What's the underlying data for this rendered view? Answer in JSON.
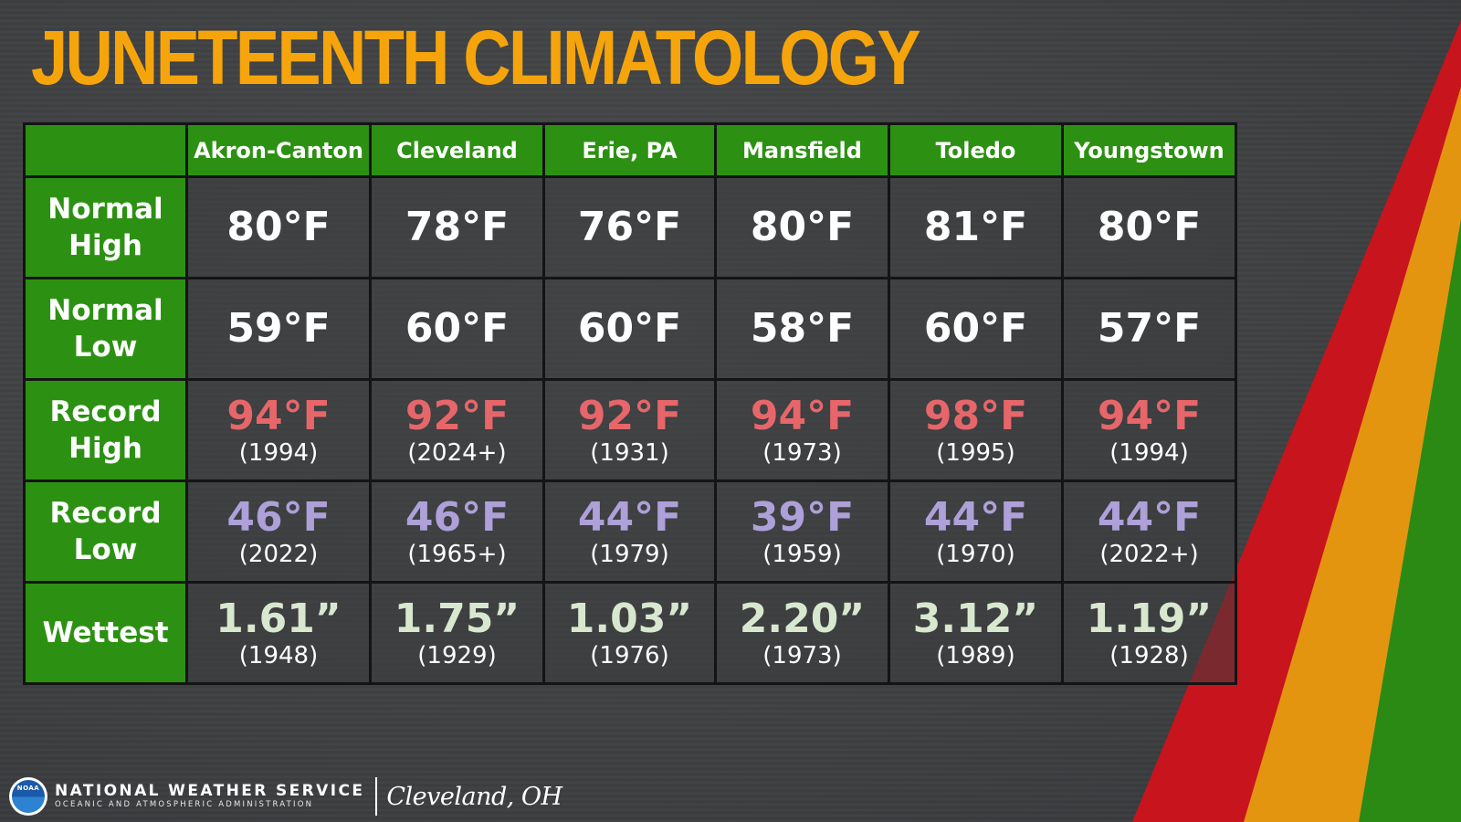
{
  "title": "JUNETEENTH CLIMATOLOGY",
  "columns": [
    "Akron-Canton",
    "Cleveland",
    "Erie, PA",
    "Mansfield",
    "Toledo",
    "Youngstown"
  ],
  "rows": [
    {
      "label": "Normal High",
      "cells": [
        {
          "value": "80°F"
        },
        {
          "value": "78°F"
        },
        {
          "value": "76°F"
        },
        {
          "value": "80°F"
        },
        {
          "value": "81°F"
        },
        {
          "value": "80°F"
        }
      ]
    },
    {
      "label": "Normal Low",
      "cells": [
        {
          "value": "59°F"
        },
        {
          "value": "60°F"
        },
        {
          "value": "60°F"
        },
        {
          "value": "58°F"
        },
        {
          "value": "60°F"
        },
        {
          "value": "57°F"
        }
      ]
    },
    {
      "label": "Record High",
      "cells": [
        {
          "value": "94°F",
          "year": "(1994)"
        },
        {
          "value": "92°F",
          "year": "(2024+)"
        },
        {
          "value": "92°F",
          "year": "(1931)"
        },
        {
          "value": "94°F",
          "year": "(1973)"
        },
        {
          "value": "98°F",
          "year": "(1995)"
        },
        {
          "value": "94°F",
          "year": "(1994)"
        }
      ]
    },
    {
      "label": "Record Low",
      "cells": [
        {
          "value": "46°F",
          "year": "(2022)"
        },
        {
          "value": "46°F",
          "year": "(1965+)"
        },
        {
          "value": "44°F",
          "year": "(1979)"
        },
        {
          "value": "39°F",
          "year": "(1959)"
        },
        {
          "value": "44°F",
          "year": "(1970)"
        },
        {
          "value": "44°F",
          "year": "(2022+)"
        }
      ]
    },
    {
      "label": "Wettest",
      "cells": [
        {
          "value": "1.61”",
          "year": "(1948)"
        },
        {
          "value": "1.75”",
          "year": "(1929)"
        },
        {
          "value": "1.03”",
          "year": "(1976)"
        },
        {
          "value": "2.20”",
          "year": "(1973)"
        },
        {
          "value": "3.12”",
          "year": "(1989)"
        },
        {
          "value": "1.19”",
          "year": "(1928)"
        }
      ]
    }
  ],
  "colors": {
    "title": "#f5a50b",
    "header_green": "#2c9112",
    "record_high": "#e6666a",
    "record_low": "#aea0d8",
    "wettest": "#d8e8cf",
    "stripe_red": "#c8141c",
    "stripe_orange": "#e3950f",
    "stripe_green": "#2a8a14"
  },
  "footer": {
    "logo_icon": "noaa-logo-icon",
    "logo_text": "NOAA",
    "org_name": "NATIONAL WEATHER SERVICE",
    "org_sub": "OCEANIC AND ATMOSPHERIC ADMINISTRATION",
    "office": "Cleveland, OH"
  }
}
